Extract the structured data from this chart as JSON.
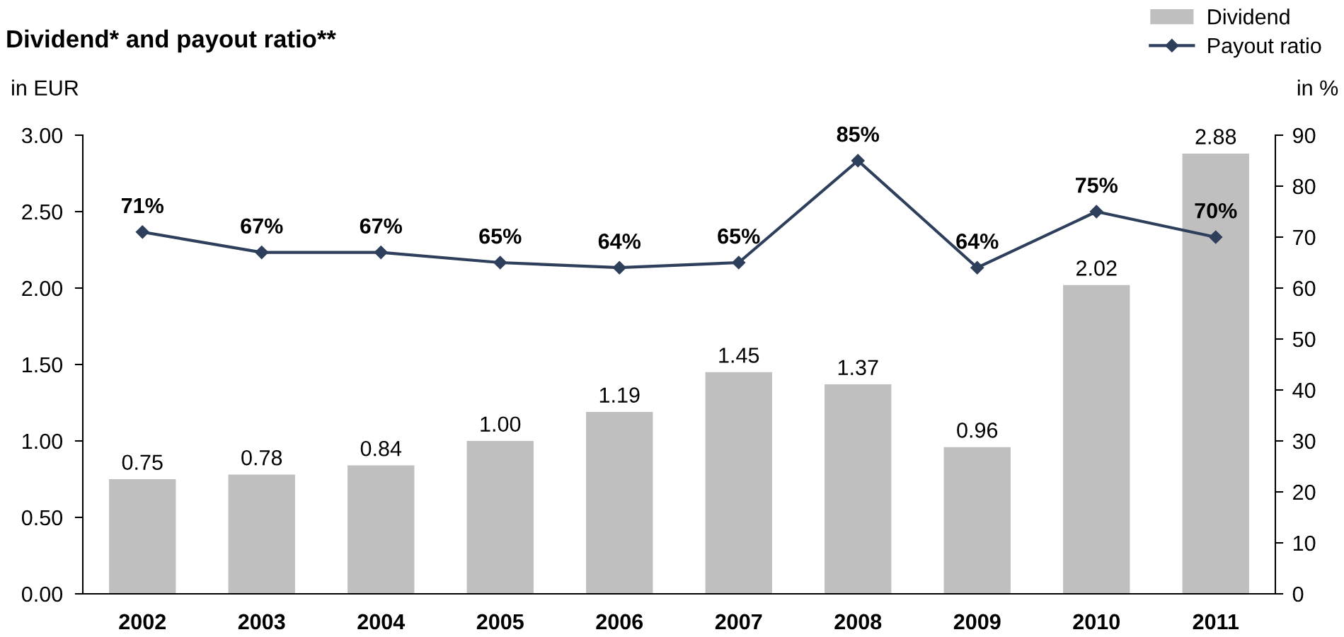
{
  "chart_data": {
    "type": "bar",
    "title": "Dividend* and payout ratio**",
    "ylabel": "in EUR",
    "y2label": "in %",
    "categories": [
      "2002",
      "2003",
      "2004",
      "2005",
      "2006",
      "2007",
      "2008",
      "2009",
      "2010",
      "2011"
    ],
    "series": [
      {
        "name": "Dividend",
        "color": "#bfbfbf",
        "values": [
          0.75,
          0.78,
          0.84,
          1.0,
          1.19,
          1.45,
          1.37,
          0.96,
          2.02,
          2.88
        ],
        "value_labels": [
          "0.75",
          "0.78",
          "0.84",
          "1.00",
          "1.19",
          "1.45",
          "1.37",
          "0.96",
          "2.02",
          "2.88"
        ]
      },
      {
        "name": "Payout ratio",
        "type": "line",
        "axis": "y2",
        "color": "#2e3f5c",
        "marker": "diamond",
        "values": [
          71,
          67,
          67,
          65,
          64,
          65,
          85,
          64,
          75,
          70
        ],
        "value_labels": [
          "71%",
          "67%",
          "67%",
          "65%",
          "64%",
          "65%",
          "85%",
          "64%",
          "75%",
          "70%"
        ]
      }
    ],
    "ylim": [
      0,
      3
    ],
    "yticks": [
      {
        "value": 0,
        "label": "0.00"
      },
      {
        "value": 0.5,
        "label": "0.50"
      },
      {
        "value": 1,
        "label": "1.00"
      },
      {
        "value": 1.5,
        "label": "1.50"
      },
      {
        "value": 2,
        "label": "2.00"
      },
      {
        "value": 2.5,
        "label": "2.50"
      },
      {
        "value": 3,
        "label": "3.00"
      }
    ],
    "y2lim": [
      0,
      90
    ],
    "y2ticks": [
      0,
      10,
      20,
      30,
      40,
      50,
      60,
      70,
      80,
      90
    ],
    "grid": false,
    "legend": "top right"
  }
}
